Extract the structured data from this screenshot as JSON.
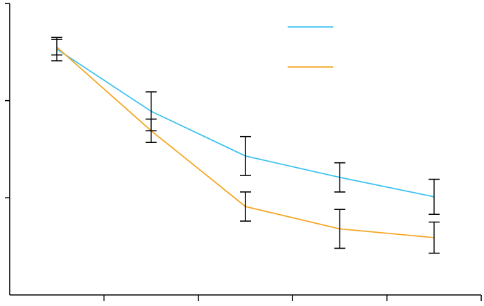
{
  "chart_data": {
    "type": "line",
    "title": "",
    "xlabel": "",
    "ylabel": "",
    "x": [
      1,
      2,
      3,
      4,
      5
    ],
    "xlim": [
      0.5,
      5.5
    ],
    "ylim": [
      0,
      3
    ],
    "x_tick_values": [
      1.5,
      2.5,
      3.5,
      4.5,
      5.5
    ],
    "y_tick_values": [
      1,
      2,
      3
    ],
    "grid": false,
    "legend_position": "top-right",
    "series": [
      {
        "color": "#3fc2ef",
        "values": [
          2.53,
          1.89,
          1.43,
          1.21,
          1.01
        ],
        "errors": [
          0.12,
          0.2,
          0.2,
          0.15,
          0.18
        ]
      },
      {
        "color": "#f5a623",
        "values": [
          2.55,
          1.69,
          0.91,
          0.68,
          0.59
        ],
        "errors": [
          0.08,
          0.12,
          0.15,
          0.2,
          0.16
        ]
      }
    ]
  }
}
